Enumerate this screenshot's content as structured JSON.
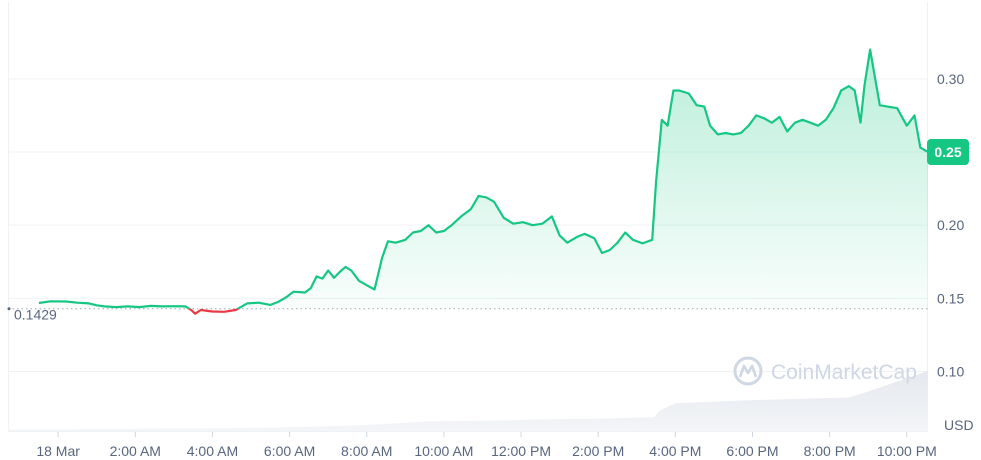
{
  "watermark": "CoinMarketCap",
  "colors": {
    "up": "#16c784",
    "down": "#ea3943",
    "grid": "#eff2f5",
    "ref": "#9ea7b6",
    "axis": "#58667e"
  },
  "chart_data": {
    "type": "area",
    "currency_label": "USD",
    "reference_label": "0.1429",
    "reference_value": 0.1429,
    "current_label": "0.25",
    "current_value": 0.25,
    "ylim": [
      0.0525,
      0.3525
    ],
    "y_ticks": [
      {
        "value": 0.1,
        "label": "0.10"
      },
      {
        "value": 0.15,
        "label": "0.15"
      },
      {
        "value": 0.2,
        "label": "0.20"
      },
      {
        "value": 0.25,
        "label": "0.25"
      },
      {
        "value": 0.3,
        "label": "0.30"
      }
    ],
    "xlim": [
      -1.3,
      22.55
    ],
    "x_ticks": [
      {
        "value": 0,
        "label": "18 Mar"
      },
      {
        "value": 2,
        "label": "2:00 AM"
      },
      {
        "value": 4,
        "label": "4:00 AM"
      },
      {
        "value": 6,
        "label": "6:00 AM"
      },
      {
        "value": 8,
        "label": "8:00 AM"
      },
      {
        "value": 10,
        "label": "10:00 AM"
      },
      {
        "value": 12,
        "label": "12:00 PM"
      },
      {
        "value": 14,
        "label": "2:00 PM"
      },
      {
        "value": 16,
        "label": "4:00 PM"
      },
      {
        "value": 18,
        "label": "6:00 PM"
      },
      {
        "value": 20,
        "label": "8:00 PM"
      },
      {
        "value": 22,
        "label": "10:00 PM"
      }
    ],
    "x_unit": "hour of day",
    "series": [
      {
        "values": [
          [
            -0.5,
            0.1468
          ],
          [
            -0.2,
            0.148
          ],
          [
            0.2,
            0.1478
          ],
          [
            0.5,
            0.147
          ],
          [
            0.8,
            0.1465
          ],
          [
            1.0,
            0.1452
          ],
          [
            1.2,
            0.1445
          ],
          [
            1.5,
            0.144
          ],
          [
            1.8,
            0.1445
          ],
          [
            2.1,
            0.144
          ],
          [
            2.4,
            0.1448
          ],
          [
            2.7,
            0.1445
          ],
          [
            3.0,
            0.1446
          ],
          [
            3.3,
            0.1445
          ],
          [
            3.45,
            0.142
          ],
          [
            3.55,
            0.1395
          ],
          [
            3.7,
            0.142
          ],
          [
            4.0,
            0.141
          ],
          [
            4.3,
            0.1408
          ],
          [
            4.6,
            0.142
          ],
          [
            4.9,
            0.1465
          ],
          [
            5.2,
            0.147
          ],
          [
            5.5,
            0.1455
          ],
          [
            5.7,
            0.1475
          ],
          [
            5.9,
            0.1505
          ],
          [
            6.1,
            0.1545
          ],
          [
            6.4,
            0.154
          ],
          [
            6.55,
            0.157
          ],
          [
            6.7,
            0.165
          ],
          [
            6.85,
            0.1635
          ],
          [
            7.0,
            0.169
          ],
          [
            7.15,
            0.164
          ],
          [
            7.3,
            0.168
          ],
          [
            7.45,
            0.1715
          ],
          [
            7.6,
            0.169
          ],
          [
            7.8,
            0.162
          ],
          [
            8.0,
            0.159
          ],
          [
            8.2,
            0.156
          ],
          [
            8.4,
            0.178
          ],
          [
            8.55,
            0.189
          ],
          [
            8.75,
            0.188
          ],
          [
            9.0,
            0.19
          ],
          [
            9.2,
            0.195
          ],
          [
            9.4,
            0.196
          ],
          [
            9.6,
            0.2
          ],
          [
            9.8,
            0.195
          ],
          [
            10.0,
            0.196
          ],
          [
            10.2,
            0.2
          ],
          [
            10.45,
            0.206
          ],
          [
            10.7,
            0.211
          ],
          [
            10.9,
            0.22
          ],
          [
            11.1,
            0.219
          ],
          [
            11.3,
            0.216
          ],
          [
            11.55,
            0.205
          ],
          [
            11.8,
            0.201
          ],
          [
            12.05,
            0.202
          ],
          [
            12.3,
            0.2
          ],
          [
            12.55,
            0.201
          ],
          [
            12.8,
            0.206
          ],
          [
            13.0,
            0.193
          ],
          [
            13.2,
            0.188
          ],
          [
            13.45,
            0.192
          ],
          [
            13.65,
            0.194
          ],
          [
            13.9,
            0.191
          ],
          [
            14.1,
            0.181
          ],
          [
            14.3,
            0.183
          ],
          [
            14.5,
            0.188
          ],
          [
            14.7,
            0.195
          ],
          [
            14.9,
            0.19
          ],
          [
            15.15,
            0.1875
          ],
          [
            15.4,
            0.19
          ],
          [
            15.5,
            0.23
          ],
          [
            15.65,
            0.272
          ],
          [
            15.8,
            0.268
          ],
          [
            15.95,
            0.292
          ],
          [
            16.1,
            0.292
          ],
          [
            16.35,
            0.29
          ],
          [
            16.55,
            0.282
          ],
          [
            16.75,
            0.281
          ],
          [
            16.9,
            0.268
          ],
          [
            17.1,
            0.262
          ],
          [
            17.3,
            0.263
          ],
          [
            17.5,
            0.262
          ],
          [
            17.7,
            0.263
          ],
          [
            17.9,
            0.268
          ],
          [
            18.1,
            0.275
          ],
          [
            18.3,
            0.273
          ],
          [
            18.5,
            0.27
          ],
          [
            18.7,
            0.274
          ],
          [
            18.9,
            0.264
          ],
          [
            19.1,
            0.27
          ],
          [
            19.3,
            0.272
          ],
          [
            19.5,
            0.27
          ],
          [
            19.7,
            0.268
          ],
          [
            19.9,
            0.272
          ],
          [
            20.1,
            0.28
          ],
          [
            20.3,
            0.292
          ],
          [
            20.5,
            0.295
          ],
          [
            20.65,
            0.292
          ],
          [
            20.8,
            0.27
          ],
          [
            20.9,
            0.295
          ],
          [
            21.05,
            0.32
          ],
          [
            21.3,
            0.282
          ],
          [
            21.5,
            0.281
          ],
          [
            21.75,
            0.28
          ],
          [
            22.0,
            0.268
          ],
          [
            22.2,
            0.275
          ],
          [
            22.35,
            0.253
          ],
          [
            22.55,
            0.25
          ]
        ]
      }
    ],
    "volume": {
      "values": [
        [
          -1.3,
          0.5
        ],
        [
          0.0,
          0.5
        ],
        [
          2.0,
          0.7
        ],
        [
          4.0,
          0.9
        ],
        [
          5.5,
          1.0
        ],
        [
          6.5,
          1.4
        ],
        [
          7.6,
          1.7
        ],
        [
          8.4,
          2.2
        ],
        [
          9.5,
          3.0
        ],
        [
          10.5,
          3.2
        ],
        [
          11.5,
          3.3
        ],
        [
          12.5,
          3.7
        ],
        [
          14.0,
          3.9
        ],
        [
          15.45,
          4.4
        ],
        [
          15.6,
          6.5
        ],
        [
          16.0,
          8.8
        ],
        [
          18.0,
          9.8
        ],
        [
          20.5,
          10.6
        ],
        [
          21.0,
          12.5
        ],
        [
          22.55,
          19.0
        ]
      ],
      "max": 19.0
    }
  }
}
